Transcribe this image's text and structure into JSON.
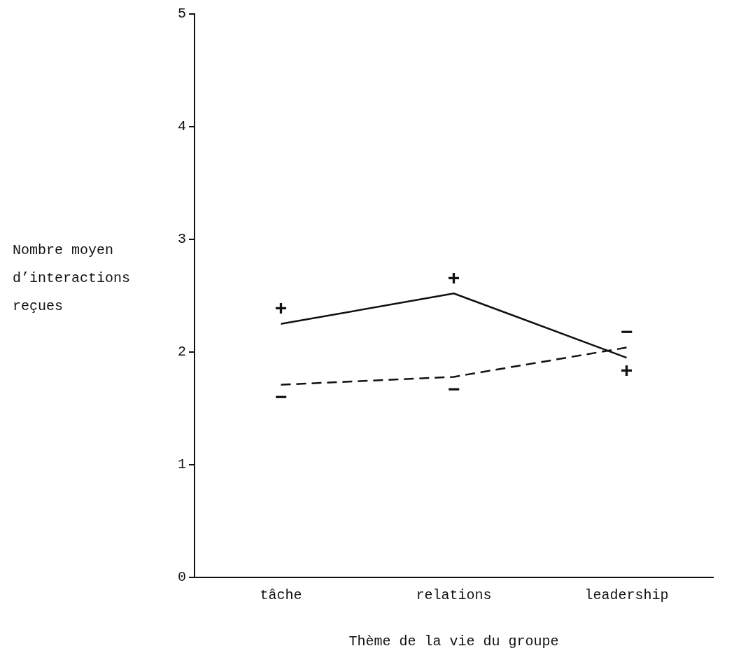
{
  "chart_data": {
    "type": "line",
    "xlabel": "Thème de la vie du groupe",
    "ylabel": "Nombre moyen d’interactions reçues",
    "categories": [
      "tâche",
      "relations",
      "leadership"
    ],
    "series": [
      {
        "name": "+",
        "color": "#111111",
        "values": [
          2.25,
          2.52,
          1.95
        ],
        "line_style": "solid"
      },
      {
        "name": "−",
        "color": "#111111",
        "values": [
          1.71,
          1.78,
          2.04
        ],
        "line_style": "dashed"
      }
    ],
    "ylim": [
      0,
      5
    ],
    "yticks": [
      0,
      1,
      2,
      3,
      4,
      5
    ],
    "grid": false,
    "legend": false,
    "marker": "none"
  }
}
